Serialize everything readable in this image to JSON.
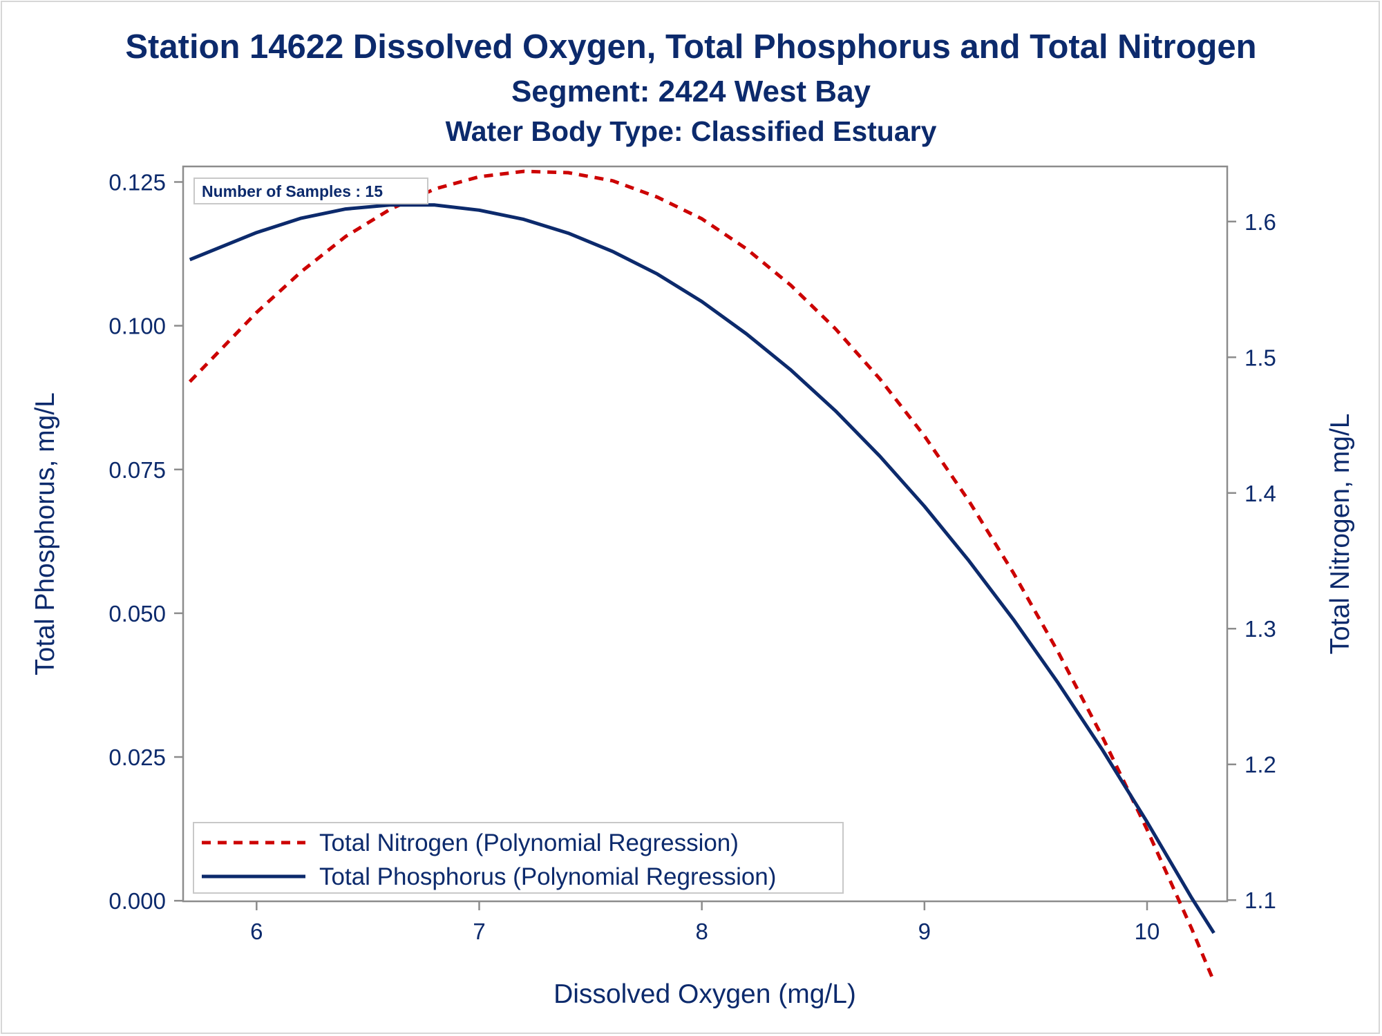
{
  "chart_data": {
    "type": "line",
    "title": "Station 14622  Dissolved Oxygen, Total Phosphorus and Total Nitrogen",
    "subtitle": "Segment: 2424  West Bay",
    "subtitle2": "Water Body Type: Classified Estuary",
    "xlabel": "Dissolved Oxygen (mg/L)",
    "ylabel": "Total Phosphorus, mg/L",
    "y2label": "Total Nitrogen, mg/L",
    "xlim": [
      5.67,
      10.36
    ],
    "ylim": [
      -0.0001,
      0.1277
    ],
    "y2lim": [
      1.0991,
      1.6406
    ],
    "x_ticks": [
      "6",
      "7",
      "8",
      "9",
      "10"
    ],
    "y_ticks": [
      "0.000",
      "0.025",
      "0.050",
      "0.075",
      "0.100",
      "0.125"
    ],
    "y2_ticks": [
      "1.1",
      "1.2",
      "1.3",
      "1.4",
      "1.5",
      "1.6"
    ],
    "inset": "Number of Samples : 15",
    "grid": false,
    "legend_position": "bottom-left",
    "series": [
      {
        "name": "Total Nitrogen (Polynomial Regression)",
        "axis": "y2",
        "style": "dashed",
        "color": "#cc0000",
        "x": [
          5.7,
          6.0,
          6.2,
          6.4,
          6.6,
          6.8,
          7.0,
          7.2,
          7.4,
          7.6,
          7.8,
          8.0,
          8.2,
          8.4,
          8.6,
          8.8,
          9.0,
          9.2,
          9.4,
          9.6,
          9.8,
          10.0,
          10.2,
          10.3
        ],
        "values": [
          1.482,
          1.533,
          1.563,
          1.589,
          1.609,
          1.624,
          1.633,
          1.637,
          1.636,
          1.63,
          1.618,
          1.602,
          1.58,
          1.553,
          1.521,
          1.484,
          1.442,
          1.394,
          1.341,
          1.283,
          1.22,
          1.152,
          1.079,
          1.04
        ]
      },
      {
        "name": "Total Phosphorus (Polynomial Regression)",
        "axis": "y",
        "style": "solid",
        "color": "#0c2a6c",
        "x": [
          5.7,
          6.0,
          6.2,
          6.4,
          6.6,
          6.8,
          7.0,
          7.2,
          7.4,
          7.6,
          7.8,
          8.0,
          8.2,
          8.4,
          8.6,
          8.8,
          9.0,
          9.2,
          9.4,
          9.6,
          9.8,
          10.0,
          10.2,
          10.3
        ],
        "values": [
          0.1115,
          0.1162,
          0.1187,
          0.1203,
          0.121,
          0.121,
          0.1201,
          0.1185,
          0.1161,
          0.1129,
          0.109,
          0.1042,
          0.0986,
          0.0923,
          0.0852,
          0.0773,
          0.0686,
          0.0591,
          0.0489,
          0.0379,
          0.0262,
          0.0137,
          0.0005,
          -0.0056
        ]
      }
    ]
  },
  "colors": {
    "text": "#0c2a6c",
    "axis": "#8c8c8c",
    "nitrogen": "#cc0000",
    "phosphorus": "#0c2a6c"
  }
}
